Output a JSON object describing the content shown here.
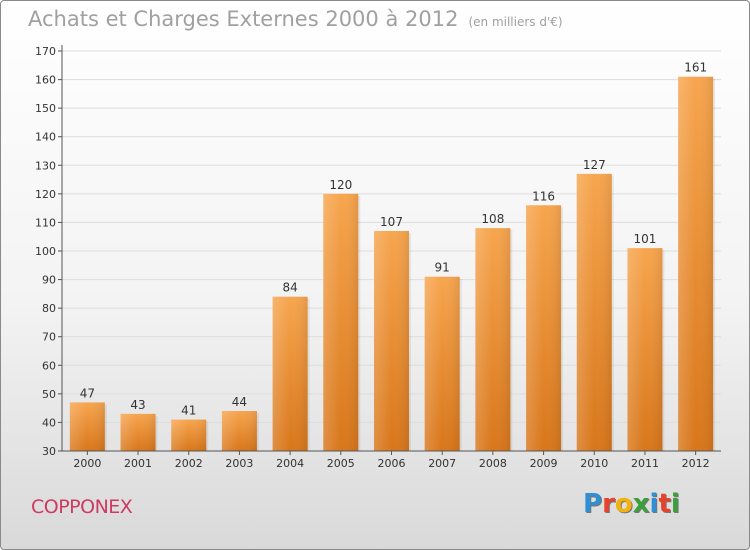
{
  "header": {
    "title": "Achats et Charges Externes 2000 à 2012",
    "subtitle": "(en milliers d'€)"
  },
  "footer": {
    "commune": "COPPONEX",
    "brand": "Proxiti"
  },
  "colors": {
    "bar_top": "#f7a54e",
    "bar_bottom": "#d8761a",
    "axis": "#555555",
    "grid": "#dddddd",
    "commune": "#cf3a62"
  },
  "brand_letters": [
    {
      "ch": "P",
      "color": "#2f8fd0"
    },
    {
      "ch": "r",
      "color": "#e8412c"
    },
    {
      "ch": "o",
      "color": "#f2b10b"
    },
    {
      "ch": "x",
      "color": "#3b9f3b"
    },
    {
      "ch": "i",
      "color": "#2f8fd0"
    },
    {
      "ch": "t",
      "color": "#e8412c"
    },
    {
      "ch": "i",
      "color": "#3b9f3b"
    }
  ],
  "chart_data": {
    "type": "bar",
    "title": "Achats et Charges Externes 2000 à 2012",
    "subtitle": "(en milliers d'€)",
    "categories": [
      "2000",
      "2001",
      "2002",
      "2003",
      "2004",
      "2005",
      "2006",
      "2007",
      "2008",
      "2009",
      "2010",
      "2011",
      "2012"
    ],
    "values": [
      47,
      43,
      41,
      44,
      84,
      120,
      107,
      91,
      108,
      116,
      127,
      101,
      161
    ],
    "ylim": [
      30,
      170
    ],
    "yticks": [
      30,
      40,
      50,
      60,
      70,
      80,
      90,
      100,
      110,
      120,
      130,
      140,
      150,
      160,
      170
    ],
    "grid": true,
    "legend": "none"
  }
}
